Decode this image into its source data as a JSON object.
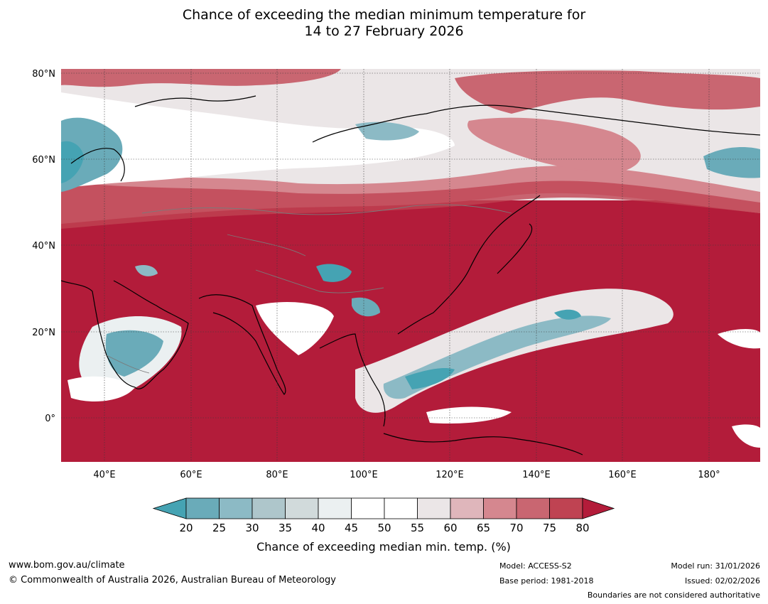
{
  "title": {
    "line1": "Chance of exceeding the median minimum temperature for",
    "line2": "14 to 27 February 2026"
  },
  "map": {
    "lat_labels": [
      "80°N",
      "60°N",
      "40°N",
      "20°N",
      "0°"
    ],
    "lon_labels": [
      "40°E",
      "60°E",
      "80°E",
      "100°E",
      "120°E",
      "140°E",
      "160°E",
      "180°"
    ]
  },
  "colorbar": {
    "label": "Chance of exceeding median min. temp. (%)",
    "ticks": [
      "20",
      "25",
      "30",
      "35",
      "40",
      "45",
      "50",
      "55",
      "60",
      "65",
      "70",
      "75",
      "80"
    ],
    "colors": [
      "#45a3b3",
      "#6aabb9",
      "#8cbac5",
      "#aec6cb",
      "#d1dadb",
      "#ebf0f1",
      "#ffffff",
      "#ffffff",
      "#ebe6e7",
      "#dfb6bb",
      "#d5878f",
      "#c96671",
      "#bf4352",
      "#b31c3a"
    ]
  },
  "footer": {
    "url": "www.bom.gov.au/climate",
    "copyright": "© Commonwealth of Australia 2026, Australian Bureau of Meteorology",
    "model": "Model: ACCESS-S2",
    "base_period": "Base period: 1981-2018",
    "model_run": "Model run: 31/01/2026",
    "issued": "Issued: 02/02/2026",
    "disclaimer": "Boundaries are not considered authoritative"
  }
}
